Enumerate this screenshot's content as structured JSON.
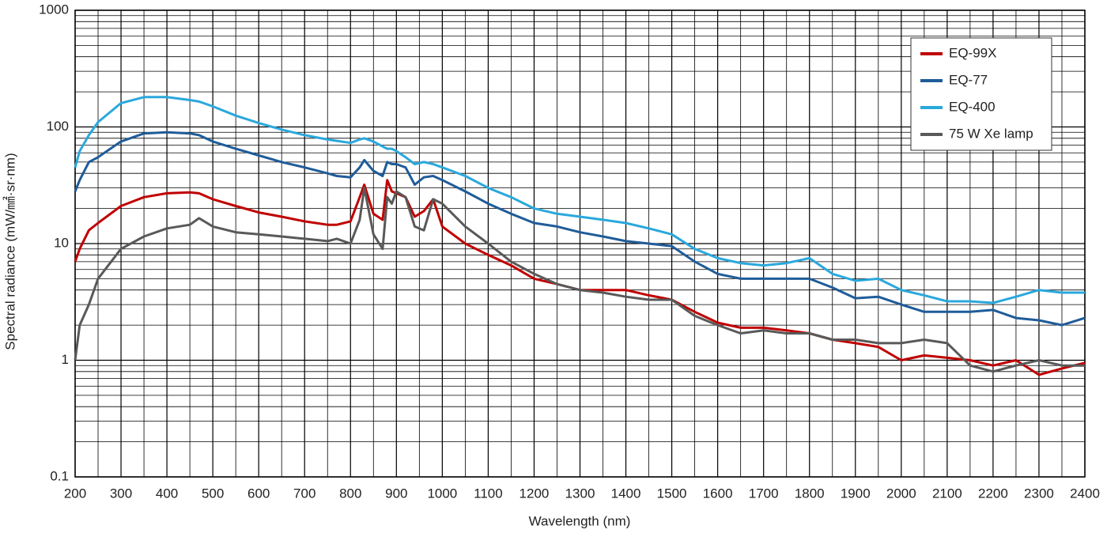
{
  "chart_data": {
    "type": "line",
    "x_label": "Wavelength (nm)",
    "y_label": "Spectral radiance (mW/㎟·sr·nm)",
    "log_y": true,
    "grid": true,
    "legend": "upper right",
    "xlim": [
      200,
      2400
    ],
    "xticks": [
      200,
      300,
      400,
      500,
      600,
      700,
      800,
      900,
      1000,
      1100,
      1200,
      1300,
      1400,
      1500,
      1600,
      1700,
      1800,
      1900,
      2000,
      2100,
      2200,
      2300,
      2400
    ],
    "ylim": [
      0.1,
      1000
    ],
    "yticks": [
      0.1,
      1,
      10,
      100,
      1000
    ],
    "x": [
      200,
      210,
      230,
      250,
      300,
      350,
      400,
      450,
      470,
      500,
      550,
      600,
      650,
      700,
      750,
      770,
      800,
      820,
      830,
      850,
      870,
      880,
      890,
      900,
      920,
      940,
      960,
      980,
      1000,
      1050,
      1100,
      1150,
      1200,
      1250,
      1300,
      1350,
      1400,
      1450,
      1500,
      1550,
      1600,
      1650,
      1700,
      1750,
      1800,
      1850,
      1900,
      1950,
      2000,
      2050,
      2100,
      2150,
      2200,
      2250,
      2300,
      2350,
      2400
    ],
    "series": [
      {
        "name": "EQ-99X",
        "color": "#c00000",
        "values": [
          7,
          9,
          13,
          15,
          21,
          25,
          27,
          27.5,
          27,
          24,
          21,
          18.5,
          17,
          15.5,
          14.5,
          14.5,
          15.5,
          25,
          32,
          18,
          16,
          35,
          28,
          27,
          25,
          17,
          19,
          24,
          14,
          10,
          8,
          6.5,
          5,
          4.5,
          4,
          4,
          4,
          3.6,
          3.3,
          2.6,
          2.1,
          1.9,
          1.9,
          1.8,
          1.7,
          1.5,
          1.4,
          1.3,
          1.0,
          1.1,
          1.05,
          1.0,
          0.9,
          1.0,
          0.75,
          0.85,
          0.95
        ]
      },
      {
        "name": "EQ-77",
        "color": "#1f5c99",
        "values": [
          28,
          35,
          50,
          55,
          75,
          88,
          90,
          88,
          85,
          75,
          65,
          57,
          50,
          45,
          40,
          38,
          37,
          45,
          52,
          42,
          38,
          50,
          48,
          48,
          45,
          32,
          37,
          38,
          35,
          28,
          22,
          18,
          15,
          14,
          12.5,
          11.5,
          10.5,
          10,
          9.5,
          7,
          5.5,
          5,
          5,
          5,
          5,
          4.2,
          3.4,
          3.5,
          3,
          2.6,
          2.6,
          2.6,
          2.7,
          2.3,
          2.2,
          2.0,
          2.3
        ]
      },
      {
        "name": "EQ-400",
        "color": "#2aa8dc",
        "values": [
          45,
          62,
          85,
          110,
          160,
          180,
          180,
          170,
          165,
          150,
          125,
          108,
          95,
          85,
          78,
          76,
          73,
          78,
          80,
          75,
          68,
          65,
          65,
          62,
          55,
          48,
          50,
          48,
          45,
          38,
          30,
          25,
          20,
          18,
          17,
          16,
          15,
          13.5,
          12,
          9,
          7.5,
          6.8,
          6.5,
          6.8,
          7.5,
          5.5,
          4.8,
          5,
          4,
          3.6,
          3.2,
          3.2,
          3.1,
          3.5,
          4,
          3.8,
          3.8
        ]
      },
      {
        "name": "75 W Xe lamp",
        "color": "#595959",
        "values": [
          1,
          2,
          3,
          5,
          9,
          11.5,
          13.5,
          14.5,
          16.5,
          14,
          12.5,
          12,
          11.5,
          11,
          10.5,
          11,
          10,
          16,
          30,
          12,
          9,
          25,
          22,
          28,
          25,
          14,
          13,
          24,
          22,
          14,
          10,
          7,
          5.5,
          4.5,
          4,
          3.8,
          3.5,
          3.3,
          3.3,
          2.4,
          2,
          1.7,
          1.8,
          1.7,
          1.7,
          1.5,
          1.5,
          1.4,
          1.4,
          1.5,
          1.4,
          0.9,
          0.8,
          0.9,
          1.0,
          0.9,
          0.9
        ]
      }
    ]
  }
}
